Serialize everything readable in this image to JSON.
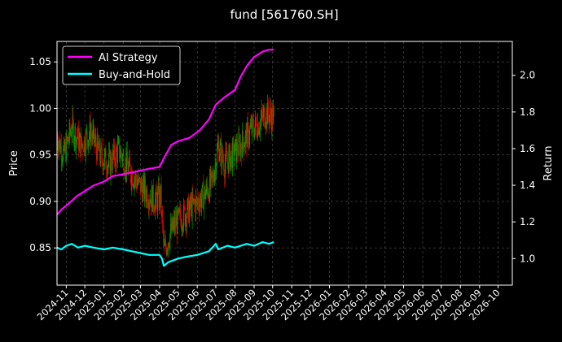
{
  "chart_data": {
    "type": "line",
    "title": "fund [561760.SH]",
    "ylabel_left": "Price",
    "ylabel_right": "Return",
    "grid": true,
    "legend_position": "top-left",
    "colors": {
      "background": "#000000",
      "grid": "#555555",
      "up_candle": "#00a000",
      "down_candle": "#e00000",
      "ai_strategy": "#ff00ff",
      "buy_and_hold": "#00ffff"
    },
    "x_ticks": [
      "2024-11",
      "2024-12",
      "2025-01",
      "2025-02",
      "2025-03",
      "2025-04",
      "2025-05",
      "2025-06",
      "2025-07",
      "2025-08",
      "2025-09",
      "2025-10",
      "2025-11",
      "2025-12",
      "2026-01",
      "2026-02",
      "2026-03",
      "2026-04",
      "2026-05",
      "2026-06",
      "2026-07",
      "2026-08",
      "2026-09",
      "2026-10"
    ],
    "x_range": [
      "2024-10-17",
      "2026-10-24"
    ],
    "y_left": {
      "ylim": [
        0.81,
        1.072
      ],
      "ticks": [
        "0.85",
        "0.90",
        "0.95",
        "1.00",
        "1.05"
      ]
    },
    "y_right": {
      "ylim": [
        0.855,
        2.185
      ],
      "ticks": [
        "1.0",
        "1.2",
        "1.4",
        "1.6",
        "1.8",
        "2.0"
      ]
    },
    "series": [
      {
        "name": "AI Strategy",
        "axis": "right",
        "points": [
          [
            "2024-10-17",
            1.24
          ],
          [
            "2024-10-25",
            1.27
          ],
          [
            "2024-11-05",
            1.3
          ],
          [
            "2024-11-18",
            1.34
          ],
          [
            "2024-12-02",
            1.37
          ],
          [
            "2024-12-16",
            1.4
          ],
          [
            "2025-01-01",
            1.42
          ],
          [
            "2025-01-15",
            1.45
          ],
          [
            "2025-02-01",
            1.46
          ],
          [
            "2025-02-15",
            1.47
          ],
          [
            "2025-03-01",
            1.48
          ],
          [
            "2025-03-15",
            1.49
          ],
          [
            "2025-04-01",
            1.5
          ],
          [
            "2025-04-10",
            1.56
          ],
          [
            "2025-04-20",
            1.62
          ],
          [
            "2025-05-01",
            1.64
          ],
          [
            "2025-05-20",
            1.66
          ],
          [
            "2025-06-05",
            1.7
          ],
          [
            "2025-06-20",
            1.76
          ],
          [
            "2025-07-01",
            1.84
          ],
          [
            "2025-07-15",
            1.88
          ],
          [
            "2025-08-01",
            1.92
          ],
          [
            "2025-08-10",
            1.99
          ],
          [
            "2025-08-20",
            2.05
          ],
          [
            "2025-09-01",
            2.1
          ],
          [
            "2025-09-15",
            2.13
          ],
          [
            "2025-09-25",
            2.14
          ],
          [
            "2025-10-03",
            2.14
          ]
        ]
      },
      {
        "name": "Buy-and-Hold",
        "axis": "right",
        "points": [
          [
            "2024-10-17",
            1.06
          ],
          [
            "2024-10-24",
            1.05
          ],
          [
            "2024-11-01",
            1.07
          ],
          [
            "2024-11-10",
            1.08
          ],
          [
            "2024-11-20",
            1.06
          ],
          [
            "2024-12-01",
            1.07
          ],
          [
            "2024-12-15",
            1.06
          ],
          [
            "2025-01-01",
            1.05
          ],
          [
            "2025-01-15",
            1.06
          ],
          [
            "2025-02-01",
            1.05
          ],
          [
            "2025-02-15",
            1.04
          ],
          [
            "2025-03-01",
            1.03
          ],
          [
            "2025-03-15",
            1.02
          ],
          [
            "2025-04-01",
            1.02
          ],
          [
            "2025-04-05",
            1.0
          ],
          [
            "2025-04-08",
            0.96
          ],
          [
            "2025-04-15",
            0.98
          ],
          [
            "2025-05-01",
            1.0
          ],
          [
            "2025-05-15",
            1.01
          ],
          [
            "2025-06-01",
            1.02
          ],
          [
            "2025-06-20",
            1.04
          ],
          [
            "2025-07-01",
            1.08
          ],
          [
            "2025-07-05",
            1.05
          ],
          [
            "2025-07-20",
            1.07
          ],
          [
            "2025-08-01",
            1.06
          ],
          [
            "2025-08-20",
            1.08
          ],
          [
            "2025-09-01",
            1.07
          ],
          [
            "2025-09-15",
            1.09
          ],
          [
            "2025-09-25",
            1.08
          ],
          [
            "2025-10-03",
            1.09
          ]
        ]
      }
    ],
    "price": {
      "axis": "left",
      "anchors": [
        [
          "2024-10-17",
          0.97
        ],
        [
          "2024-10-28",
          0.95
        ],
        [
          "2024-11-10",
          0.98
        ],
        [
          "2024-11-25",
          0.96
        ],
        [
          "2024-12-10",
          0.975
        ],
        [
          "2024-12-25",
          0.95
        ],
        [
          "2025-01-10",
          0.94
        ],
        [
          "2025-01-25",
          0.955
        ],
        [
          "2025-02-10",
          0.935
        ],
        [
          "2025-02-25",
          0.92
        ],
        [
          "2025-03-10",
          0.91
        ],
        [
          "2025-03-25",
          0.9
        ],
        [
          "2025-04-03",
          0.905
        ],
        [
          "2025-04-08",
          0.845
        ],
        [
          "2025-04-15",
          0.86
        ],
        [
          "2025-04-25",
          0.875
        ],
        [
          "2025-05-10",
          0.885
        ],
        [
          "2025-05-25",
          0.895
        ],
        [
          "2025-06-10",
          0.905
        ],
        [
          "2025-06-25",
          0.92
        ],
        [
          "2025-07-05",
          0.96
        ],
        [
          "2025-07-15",
          0.94
        ],
        [
          "2025-07-28",
          0.95
        ],
        [
          "2025-08-10",
          0.96
        ],
        [
          "2025-08-25",
          0.975
        ],
        [
          "2025-09-10",
          0.985
        ],
        [
          "2025-09-20",
          0.995
        ],
        [
          "2025-10-03",
          0.99
        ]
      ]
    }
  },
  "legend": [
    {
      "label": "AI Strategy",
      "color": "#ff00ff"
    },
    {
      "label": "Buy-and-Hold",
      "color": "#00ffff"
    }
  ]
}
